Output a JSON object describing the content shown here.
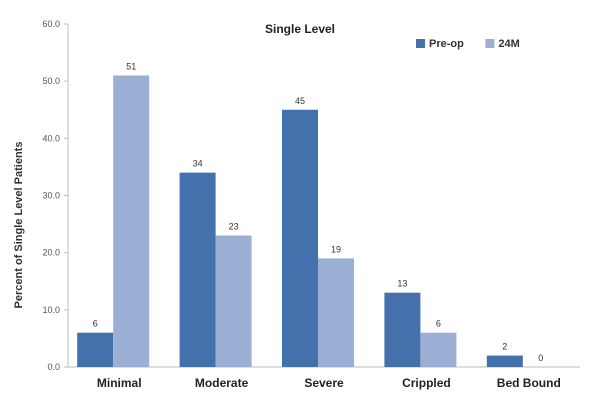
{
  "chart_data": {
    "type": "bar",
    "title": "Single Level",
    "xlabel": "",
    "ylabel": "Percent of Single Level Patients",
    "ylim": [
      0,
      60
    ],
    "yticks": [
      "0.0",
      "10.0",
      "20.0",
      "30.0",
      "40.0",
      "50.0",
      "60.0"
    ],
    "categories": [
      "Minimal",
      "Moderate",
      "Severe",
      "Crippled",
      "Bed Bound"
    ],
    "series": [
      {
        "name": "Pre-op",
        "color": "#4470ab",
        "values": [
          6,
          34,
          45,
          13,
          2
        ],
        "labels": [
          "6",
          "34",
          "45",
          "13",
          "2"
        ]
      },
      {
        "name": "24M",
        "color": "#9aafd3",
        "values": [
          51,
          23,
          19,
          6,
          0
        ],
        "labels": [
          "51",
          "23",
          "19",
          "6",
          "0"
        ]
      }
    ],
    "legend": "top-right",
    "grid": false
  }
}
